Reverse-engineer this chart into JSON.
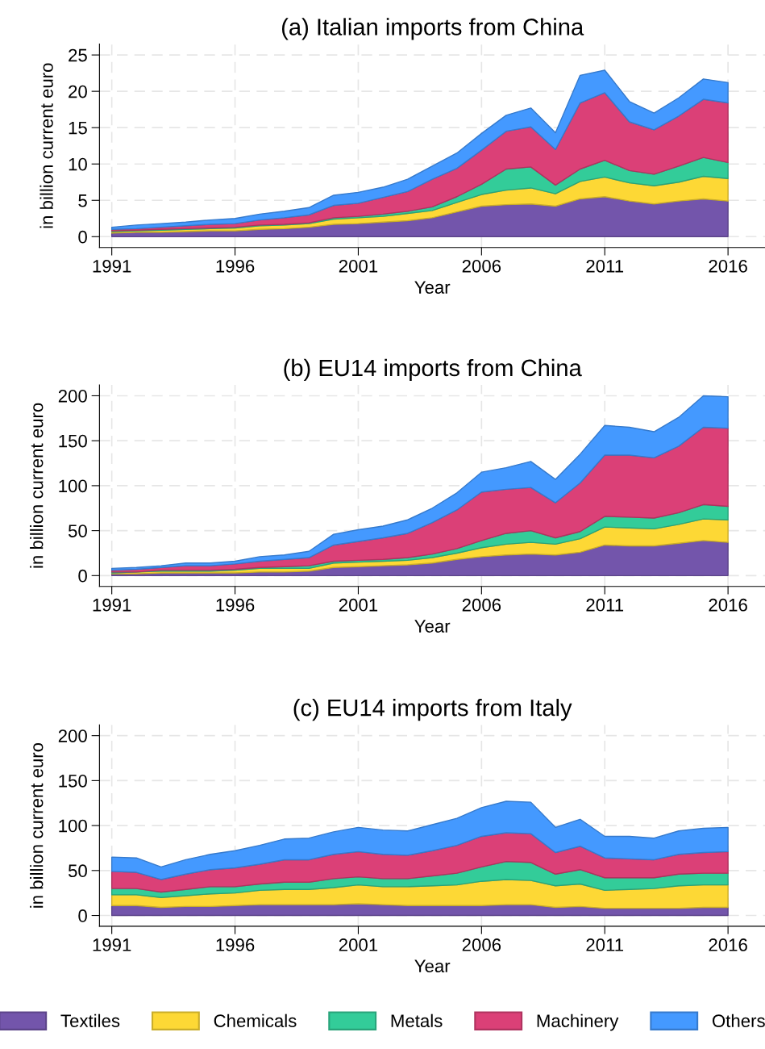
{
  "chart_data": [
    {
      "type": "area",
      "stacked": true,
      "title": "(a) Italian imports from China",
      "xlabel": "Year",
      "ylabel": "in billion current euro",
      "x": [
        1991,
        1992,
        1993,
        1994,
        1995,
        1996,
        1997,
        1998,
        1999,
        2000,
        2001,
        2002,
        2003,
        2004,
        2005,
        2006,
        2007,
        2008,
        2009,
        2010,
        2011,
        2012,
        2013,
        2014,
        2015,
        2016
      ],
      "xlim": [
        1990.5,
        2017.5
      ],
      "xticks": [
        1991,
        1996,
        2001,
        2006,
        2011,
        2016
      ],
      "ylim": [
        -1.5,
        26.5
      ],
      "yticks": [
        0,
        5,
        10,
        15,
        20,
        25
      ],
      "grid": true,
      "legend": "bottom",
      "series": [
        {
          "name": "Textiles",
          "color": "#7355ab",
          "values": [
            0.5,
            0.6,
            0.6,
            0.7,
            0.8,
            0.8,
            1.0,
            1.1,
            1.3,
            1.7,
            1.8,
            2.0,
            2.2,
            2.6,
            3.4,
            4.2,
            4.4,
            4.5,
            4.2,
            5.2,
            5.5,
            4.9,
            4.5,
            4.9,
            5.2,
            4.9
          ]
        },
        {
          "name": "Chemicals",
          "color": "#fdd835",
          "values": [
            0.2,
            0.2,
            0.3,
            0.3,
            0.3,
            0.4,
            0.5,
            0.5,
            0.5,
            0.7,
            0.8,
            0.8,
            1.0,
            1.0,
            1.3,
            1.6,
            2.0,
            2.2,
            1.7,
            2.4,
            2.7,
            2.5,
            2.5,
            2.6,
            3.1,
            3.1
          ]
        },
        {
          "name": "Metals",
          "color": "#33cc99",
          "values": [
            0.1,
            0.1,
            0.1,
            0.1,
            0.1,
            0.1,
            0.1,
            0.1,
            0.1,
            0.2,
            0.2,
            0.3,
            0.3,
            0.5,
            0.8,
            1.4,
            2.9,
            2.9,
            1.2,
            1.7,
            2.3,
            1.7,
            1.6,
            2.2,
            2.6,
            2.2
          ]
        },
        {
          "name": "Machinery",
          "color": "#db4077",
          "values": [
            0.2,
            0.2,
            0.3,
            0.4,
            0.5,
            0.5,
            0.7,
            0.9,
            1.1,
            1.7,
            1.8,
            2.3,
            2.7,
            3.8,
            3.9,
            4.7,
            5.2,
            5.5,
            4.9,
            9.1,
            9.3,
            6.7,
            6.1,
            6.9,
            8.0,
            8.2
          ]
        },
        {
          "name": "Others",
          "color": "#4499ff",
          "values": [
            0.3,
            0.5,
            0.5,
            0.5,
            0.6,
            0.7,
            0.8,
            0.9,
            1.0,
            1.4,
            1.5,
            1.4,
            1.7,
            1.8,
            2.1,
            2.3,
            2.2,
            2.6,
            2.3,
            3.8,
            3.1,
            2.8,
            2.3,
            2.5,
            2.8,
            2.8
          ]
        }
      ]
    },
    {
      "type": "area",
      "stacked": true,
      "title": "(b) EU14 imports from China",
      "xlabel": "Year",
      "ylabel": "in billion current euro",
      "x": [
        1991,
        1992,
        1993,
        1994,
        1995,
        1996,
        1997,
        1998,
        1999,
        2000,
        2001,
        2002,
        2003,
        2004,
        2005,
        2006,
        2007,
        2008,
        2009,
        2010,
        2011,
        2012,
        2013,
        2014,
        2015,
        2016
      ],
      "xlim": [
        1990.5,
        2017.5
      ],
      "xticks": [
        1991,
        1996,
        2001,
        2006,
        2011,
        2016
      ],
      "ylim": [
        -12,
        212
      ],
      "yticks": [
        0,
        50,
        100,
        150,
        200
      ],
      "grid": true,
      "series": [
        {
          "color": "#7355ab",
          "values": [
            2,
            2,
            3,
            3,
            3,
            3,
            4,
            4,
            5,
            9,
            10,
            11,
            12,
            14,
            18,
            21,
            23,
            24,
            23,
            26,
            34,
            33,
            33,
            36,
            39,
            37
          ]
        },
        {
          "color": "#fdd835",
          "values": [
            1,
            2,
            2,
            2,
            2,
            3,
            4,
            4,
            3,
            5,
            5,
            5,
            5,
            6,
            7,
            10,
            12,
            13,
            12,
            15,
            20,
            20,
            19,
            21,
            24,
            25
          ]
        },
        {
          "color": "#33cc99",
          "values": [
            1,
            0,
            1,
            1,
            1,
            1,
            1,
            2,
            3,
            2,
            2,
            2,
            3,
            4,
            5,
            8,
            12,
            13,
            7,
            8,
            12,
            12,
            12,
            13,
            16,
            15
          ]
        },
        {
          "color": "#db4077",
          "values": [
            2,
            3,
            3,
            5,
            5,
            6,
            7,
            8,
            9,
            18,
            21,
            24,
            27,
            35,
            43,
            54,
            49,
            48,
            39,
            54,
            68,
            69,
            67,
            74,
            86,
            87
          ]
        },
        {
          "color": "#4499ff",
          "values": [
            2,
            2,
            2,
            3,
            3,
            3,
            5,
            5,
            7,
            12,
            13,
            13,
            15,
            16,
            19,
            22,
            24,
            29,
            26,
            32,
            33,
            31,
            29,
            32,
            35,
            35
          ]
        }
      ]
    },
    {
      "type": "area",
      "stacked": true,
      "title": "(c) EU14 imports from Italy",
      "xlabel": "Year",
      "ylabel": "in billion current euro",
      "x": [
        1991,
        1992,
        1993,
        1994,
        1995,
        1996,
        1997,
        1998,
        1999,
        2000,
        2001,
        2002,
        2003,
        2004,
        2005,
        2006,
        2007,
        2008,
        2009,
        2010,
        2011,
        2012,
        2013,
        2014,
        2015,
        2016
      ],
      "xlim": [
        1990.5,
        2017.5
      ],
      "xticks": [
        1991,
        1996,
        2001,
        2006,
        2011,
        2016
      ],
      "ylim": [
        -12,
        212
      ],
      "yticks": [
        0,
        50,
        100,
        150,
        200
      ],
      "grid": true,
      "series": [
        {
          "color": "#7355ab",
          "values": [
            11,
            11,
            9,
            10,
            10,
            11,
            12,
            12,
            12,
            12,
            13,
            12,
            11,
            11,
            11,
            11,
            12,
            12,
            9,
            10,
            8,
            8,
            8,
            8,
            9,
            9
          ]
        },
        {
          "color": "#fdd835",
          "values": [
            12,
            12,
            11,
            12,
            14,
            14,
            16,
            17,
            17,
            19,
            21,
            20,
            21,
            22,
            23,
            27,
            28,
            27,
            24,
            25,
            20,
            21,
            22,
            25,
            25,
            25
          ]
        },
        {
          "color": "#33cc99",
          "values": [
            7,
            7,
            6,
            7,
            8,
            7,
            7,
            8,
            8,
            10,
            9,
            9,
            9,
            11,
            13,
            16,
            20,
            20,
            13,
            16,
            14,
            13,
            12,
            13,
            13,
            13
          ]
        },
        {
          "color": "#db4077",
          "values": [
            19,
            18,
            14,
            17,
            19,
            21,
            22,
            25,
            25,
            27,
            28,
            27,
            26,
            28,
            31,
            34,
            32,
            32,
            24,
            26,
            22,
            21,
            20,
            22,
            23,
            24
          ]
        },
        {
          "color": "#4499ff",
          "values": [
            16,
            16,
            14,
            16,
            17,
            19,
            21,
            23,
            24,
            25,
            27,
            27,
            27,
            29,
            30,
            32,
            35,
            35,
            28,
            30,
            24,
            25,
            24,
            26,
            27,
            27
          ]
        }
      ]
    }
  ]
}
